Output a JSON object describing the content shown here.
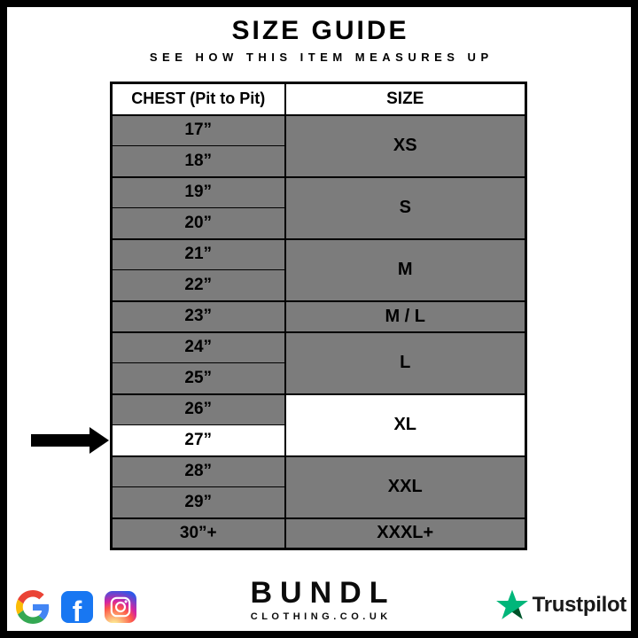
{
  "page": {
    "title": "SIZE GUIDE",
    "subtitle": "SEE HOW THIS ITEM MEASURES UP"
  },
  "size_table": {
    "columns": {
      "chest": "CHEST (Pit to Pit)",
      "size": "SIZE"
    },
    "groups": [
      {
        "size": "XS",
        "chest": [
          "17”",
          "18”"
        ]
      },
      {
        "size": "S",
        "chest": [
          "19”",
          "20”"
        ]
      },
      {
        "size": "M",
        "chest": [
          "21”",
          "22”"
        ]
      },
      {
        "size": "M / L",
        "chest": [
          "23”"
        ]
      },
      {
        "size": "L",
        "chest": [
          "24”",
          "25”"
        ]
      },
      {
        "size": "XL",
        "chest": [
          "26”",
          "27”"
        ]
      },
      {
        "size": "XXL",
        "chest": [
          "28”",
          "29”"
        ]
      },
      {
        "size": "XXXL+",
        "chest": [
          "30”+"
        ]
      }
    ],
    "highlight": {
      "chest": "27”",
      "size": "XL"
    },
    "colors": {
      "row_gray": "#7c7c7c",
      "highlight": "#ffffff",
      "border": "#000000"
    }
  },
  "annotation": {
    "arrow_points_to": "27”"
  },
  "footer": {
    "social": {
      "icons": [
        "google-icon",
        "facebook-icon",
        "instagram-icon"
      ],
      "facebook_letter": "f"
    },
    "brand": {
      "name": "BUNDL",
      "domain": "CLOTHING.CO.UK"
    },
    "trustpilot": {
      "label": "Trustpilot",
      "star_color": "#00B67A",
      "star_shadow_color": "#005128",
      "text_color": "#191919"
    }
  }
}
